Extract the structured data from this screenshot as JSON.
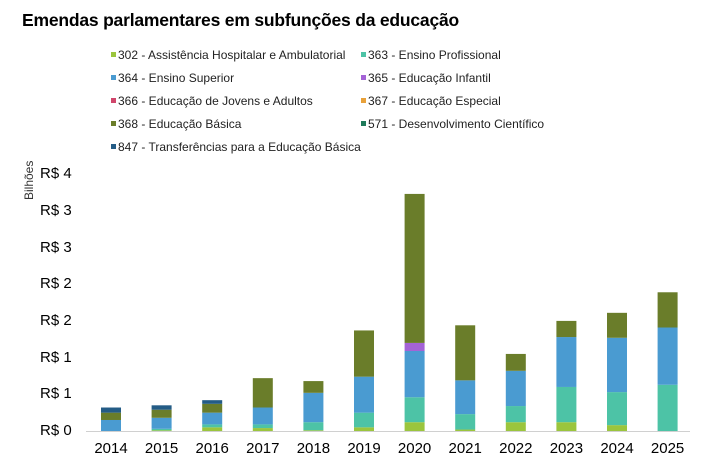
{
  "chart_data": {
    "type": "bar",
    "stacked": true,
    "title": "Emendas parlamentares em subfunções da educação",
    "xlabel": "",
    "ylabel": "Bilhões",
    "ylim": [
      0,
      3.5
    ],
    "yticks": [
      0,
      0.5,
      1,
      1.5,
      2,
      2.5,
      3,
      3.5
    ],
    "ytick_labels": [
      "R$ 0",
      "R$ 1",
      "R$ 1",
      "R$ 2",
      "R$ 2",
      "R$ 3",
      "R$ 3",
      "R$ 4"
    ],
    "grid": false,
    "legend_position": "top",
    "categories": [
      "2014",
      "2015",
      "2016",
      "2017",
      "2018",
      "2019",
      "2020",
      "2021",
      "2022",
      "2023",
      "2024",
      "2025"
    ],
    "series": [
      {
        "name": "302 - Assistência Hospitalar e Ambulatorial",
        "color": "#9BC53D",
        "values": [
          0,
          0.01,
          0.05,
          0.04,
          0.01,
          0.05,
          0.12,
          0.02,
          0.12,
          0.12,
          0.08,
          0
        ]
      },
      {
        "name": "363 - Ensino Profissional",
        "color": "#4DC3A6",
        "values": [
          0,
          0.02,
          0.04,
          0.05,
          0.11,
          0.2,
          0.34,
          0.21,
          0.22,
          0.48,
          0.45,
          0.63
        ]
      },
      {
        "name": "364 - Ensino Superior",
        "color": "#4A9BD1",
        "values": [
          0.15,
          0.15,
          0.16,
          0.23,
          0.4,
          0.49,
          0.63,
          0.46,
          0.48,
          0.68,
          0.74,
          0.78
        ]
      },
      {
        "name": "365 - Educação Infantil",
        "color": "#A463D6",
        "values": [
          0,
          0,
          0,
          0,
          0,
          0,
          0.11,
          0,
          0,
          0,
          0,
          0
        ]
      },
      {
        "name": "366 - Educação de Jovens e Adultos",
        "color": "#D0466B",
        "values": [
          0,
          0,
          0,
          0,
          0,
          0,
          0,
          0,
          0,
          0,
          0,
          0
        ]
      },
      {
        "name": "367 - Educação Especial",
        "color": "#E8A13A",
        "values": [
          0,
          0,
          0,
          0,
          0,
          0,
          0,
          0,
          0,
          0,
          0,
          0
        ]
      },
      {
        "name": "368 - Educação Básica",
        "color": "#6A7D2A",
        "values": [
          0.1,
          0.11,
          0.12,
          0.4,
          0.16,
          0.63,
          2.03,
          0.75,
          0.23,
          0.22,
          0.34,
          0.48
        ]
      },
      {
        "name": "571 - Desenvolvimento Científico",
        "color": "#1F7A5A",
        "values": [
          0,
          0,
          0,
          0,
          0,
          0,
          0,
          0,
          0,
          0,
          0,
          0
        ]
      },
      {
        "name": "847 - Transferências para a Educação Básica",
        "color": "#245C86",
        "values": [
          0.07,
          0.06,
          0.05,
          0,
          0,
          0,
          0,
          0,
          0,
          0,
          0,
          0
        ]
      }
    ]
  }
}
